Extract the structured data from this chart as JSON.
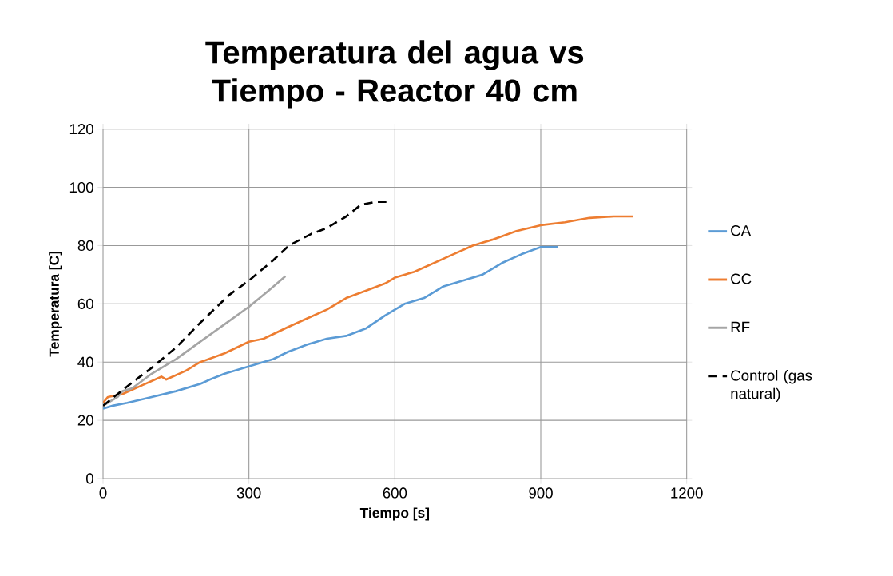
{
  "chart_data": {
    "type": "line",
    "title": "Temperatura del agua vs Tiempo - Reactor 40 cm",
    "xlabel": "Tiempo [s]",
    "ylabel": "Temperatura [C]",
    "xlim": [
      0,
      1200
    ],
    "xticks": [
      0,
      300,
      600,
      900,
      1200
    ],
    "ylim": [
      0,
      120
    ],
    "yticks": [
      0,
      20,
      40,
      60,
      80,
      100,
      120
    ],
    "grid": true,
    "legend": "right",
    "series": [
      {
        "name": "CA",
        "color": "#5b9bd5",
        "line_style": "solid",
        "x": [
          0,
          20,
          50,
          100,
          150,
          200,
          220,
          250,
          300,
          350,
          380,
          420,
          460,
          500,
          540,
          580,
          620,
          660,
          700,
          740,
          780,
          820,
          860,
          900,
          935
        ],
        "values": [
          24,
          25,
          26,
          28,
          30,
          32.5,
          34,
          36,
          38.5,
          41,
          43.5,
          46,
          48,
          49,
          51.5,
          56,
          60,
          62,
          66,
          68,
          70,
          74,
          77,
          79.5,
          79.5
        ]
      },
      {
        "name": "CC",
        "color": "#ed7d31",
        "line_style": "solid",
        "x": [
          0,
          10,
          40,
          80,
          120,
          130,
          170,
          200,
          250,
          300,
          330,
          380,
          420,
          460,
          500,
          540,
          580,
          600,
          640,
          680,
          720,
          760,
          800,
          850,
          900,
          950,
          1000,
          1050,
          1090
        ],
        "values": [
          26,
          28,
          29,
          32,
          35,
          34,
          37,
          40,
          43,
          47,
          48,
          52,
          55,
          58,
          62,
          64.5,
          67,
          69,
          71,
          74,
          77,
          80,
          82,
          85,
          87,
          88,
          89.5,
          90,
          90
        ]
      },
      {
        "name": "RF",
        "color": "#a5a5a5",
        "line_style": "solid",
        "x": [
          0,
          30,
          40,
          60,
          100,
          150,
          200,
          250,
          300,
          340,
          375
        ],
        "values": [
          25,
          28,
          30,
          31,
          36,
          41,
          47,
          53,
          59,
          64.5,
          69.5
        ]
      },
      {
        "name": "Control (gas natural)",
        "color": "#000000",
        "line_style": "dashed",
        "x": [
          0,
          30,
          60,
          100,
          150,
          200,
          259,
          300,
          350,
          382,
          428,
          460,
          500,
          530,
          560,
          585
        ],
        "values": [
          25,
          29,
          33,
          38,
          45,
          53.5,
          63,
          68,
          75,
          80,
          84,
          86,
          90,
          94,
          95,
          95
        ]
      }
    ]
  }
}
